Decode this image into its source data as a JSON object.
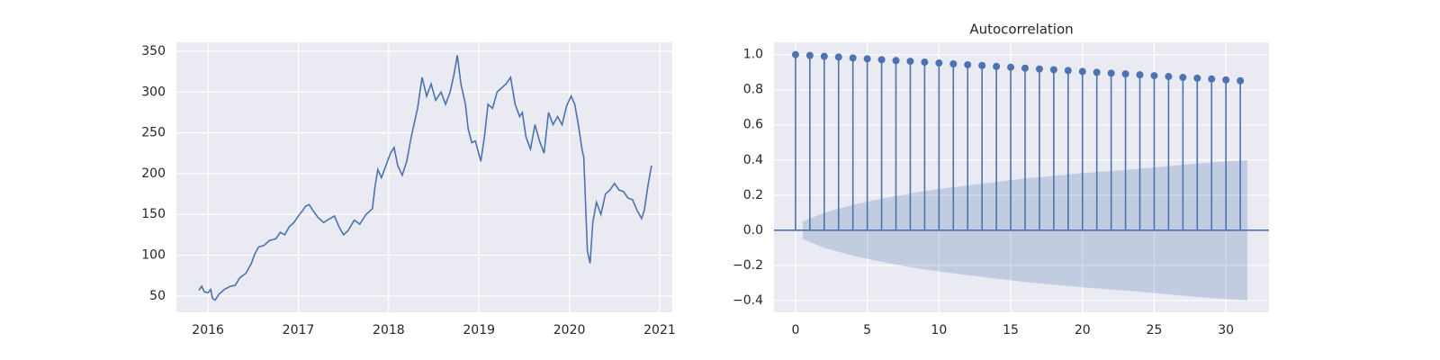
{
  "chart_data": [
    {
      "type": "line",
      "color": "#4c72b0",
      "grid": true,
      "xlim": [
        2015.65,
        2021.14
      ],
      "ylim": [
        30,
        361
      ],
      "xticks": [
        2016,
        2017,
        2018,
        2019,
        2020,
        2021
      ],
      "yticks": [
        50,
        100,
        150,
        200,
        250,
        300,
        350
      ],
      "x": [
        2015.9,
        2015.93,
        2015.96,
        2016.0,
        2016.03,
        2016.05,
        2016.08,
        2016.12,
        2016.18,
        2016.25,
        2016.3,
        2016.35,
        2016.42,
        2016.48,
        2016.52,
        2016.56,
        2016.62,
        2016.68,
        2016.75,
        2016.8,
        2016.85,
        2016.9,
        2016.95,
        2017.0,
        2017.05,
        2017.08,
        2017.12,
        2017.16,
        2017.22,
        2017.28,
        2017.35,
        2017.4,
        2017.45,
        2017.5,
        2017.55,
        2017.62,
        2017.68,
        2017.75,
        2017.8,
        2017.82,
        2017.85,
        2017.88,
        2017.92,
        2017.97,
        2018.02,
        2018.06,
        2018.1,
        2018.15,
        2018.2,
        2018.25,
        2018.32,
        2018.37,
        2018.42,
        2018.47,
        2018.52,
        2018.58,
        2018.63,
        2018.68,
        2018.72,
        2018.76,
        2018.8,
        2018.85,
        2018.88,
        2018.92,
        2018.96,
        2019.02,
        2019.06,
        2019.1,
        2019.15,
        2019.2,
        2019.25,
        2019.3,
        2019.35,
        2019.4,
        2019.45,
        2019.48,
        2019.52,
        2019.57,
        2019.62,
        2019.67,
        2019.72,
        2019.77,
        2019.82,
        2019.87,
        2019.92,
        2019.97,
        2020.02,
        2020.06,
        2020.1,
        2020.14,
        2020.16,
        2020.2,
        2020.23,
        2020.26,
        2020.3,
        2020.35,
        2020.4,
        2020.45,
        2020.5,
        2020.55,
        2020.6,
        2020.65,
        2020.7,
        2020.75,
        2020.8,
        2020.83,
        2020.87,
        2020.91
      ],
      "values": [
        57,
        62,
        55,
        54,
        58,
        47,
        45,
        52,
        58,
        62,
        63,
        72,
        78,
        90,
        102,
        110,
        112,
        118,
        120,
        128,
        125,
        135,
        140,
        148,
        155,
        160,
        162,
        155,
        146,
        140,
        145,
        148,
        135,
        125,
        130,
        143,
        138,
        150,
        155,
        157,
        185,
        205,
        195,
        210,
        225,
        232,
        210,
        198,
        215,
        245,
        280,
        318,
        295,
        310,
        290,
        300,
        285,
        300,
        320,
        345,
        310,
        285,
        255,
        238,
        240,
        215,
        245,
        285,
        280,
        300,
        305,
        310,
        318,
        285,
        270,
        275,
        245,
        230,
        260,
        240,
        225,
        275,
        260,
        270,
        260,
        283,
        295,
        285,
        260,
        230,
        220,
        105,
        90,
        140,
        165,
        150,
        175,
        180,
        188,
        180,
        178,
        170,
        168,
        155,
        145,
        155,
        185,
        210
      ]
    },
    {
      "type": "stem",
      "title": "Autocorrelation",
      "color": "#4c72b0",
      "band_color": "#4c72b0",
      "grid": true,
      "xlim": [
        -1.5,
        33
      ],
      "ylim": [
        -0.467,
        1.07
      ],
      "xticks": [
        0,
        5,
        10,
        15,
        20,
        25,
        30
      ],
      "yticks": [
        {
          "value": 1,
          "label": "1.0"
        },
        0.8,
        0.6,
        0.4,
        0.2,
        {
          "value": 0,
          "label": "0.0"
        },
        {
          "value": -0.2,
          "label": "−0.2"
        },
        {
          "value": -0.4,
          "label": "−0.4"
        }
      ],
      "x": [
        0,
        1,
        2,
        3,
        4,
        5,
        6,
        7,
        8,
        9,
        10,
        11,
        12,
        13,
        14,
        15,
        16,
        17,
        18,
        19,
        20,
        21,
        22,
        23,
        24,
        25,
        26,
        27,
        28,
        29,
        30,
        31
      ],
      "values": [
        1.0,
        0.995,
        0.99,
        0.986,
        0.981,
        0.976,
        0.971,
        0.966,
        0.962,
        0.957,
        0.952,
        0.947,
        0.942,
        0.938,
        0.933,
        0.928,
        0.923,
        0.918,
        0.914,
        0.909,
        0.904,
        0.899,
        0.894,
        0.89,
        0.885,
        0.88,
        0.875,
        0.87,
        0.866,
        0.861,
        0.856,
        0.851
      ],
      "confint": {
        "x": [
          0.5,
          2,
          4,
          6,
          8,
          10,
          13,
          16,
          20,
          24,
          28,
          31.5
        ],
        "upper": [
          0.05,
          0.1,
          0.145,
          0.18,
          0.21,
          0.235,
          0.265,
          0.295,
          0.325,
          0.35,
          0.38,
          0.4
        ],
        "lower": [
          -0.05,
          -0.1,
          -0.145,
          -0.18,
          -0.21,
          -0.235,
          -0.265,
          -0.295,
          -0.325,
          -0.35,
          -0.38,
          -0.4
        ]
      }
    }
  ]
}
